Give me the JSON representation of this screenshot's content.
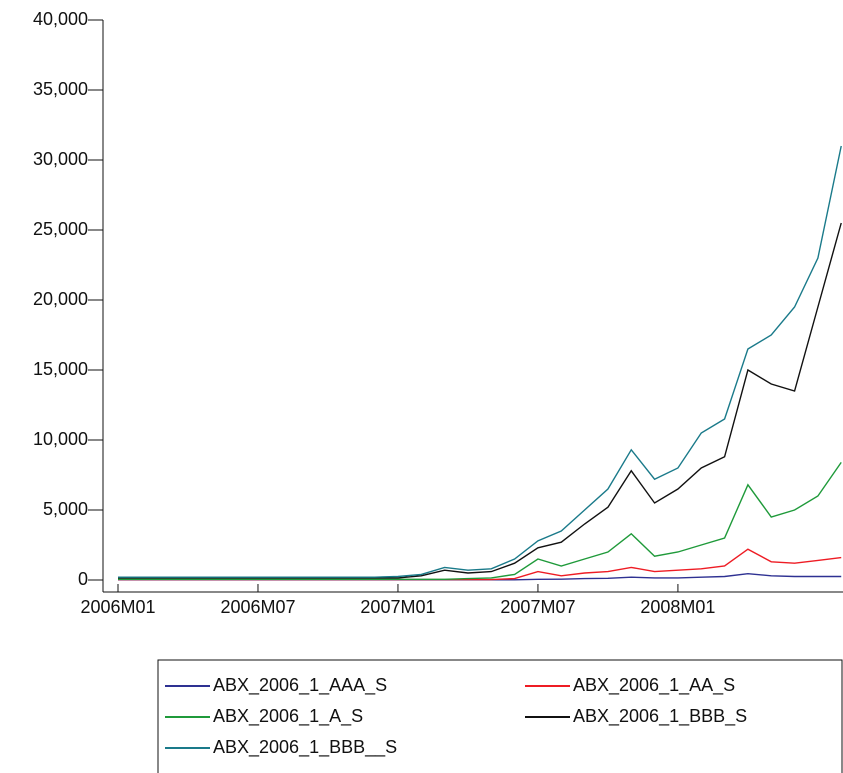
{
  "chart_data": {
    "type": "line",
    "categories": [
      "2006M01",
      null,
      null,
      null,
      null,
      null,
      "2006M07",
      null,
      null,
      null,
      null,
      null,
      "2007M01",
      null,
      null,
      null,
      null,
      null,
      "2007M07",
      null,
      null,
      null,
      null,
      null,
      "2008M01",
      null,
      null,
      null,
      null,
      null,
      null,
      null
    ],
    "series": [
      {
        "name": "ABX_2006_1_AAA_S",
        "color": "#2e3192",
        "values": [
          10,
          10,
          10,
          10,
          10,
          10,
          10,
          10,
          10,
          10,
          10,
          10,
          10,
          10,
          10,
          10,
          10,
          10,
          50,
          60,
          100,
          120,
          200,
          150,
          150,
          200,
          250,
          450,
          300,
          250,
          250,
          250
        ]
      },
      {
        "name": "ABX_2006_1_AA_S",
        "color": "#ee1c24",
        "values": [
          30,
          30,
          30,
          30,
          30,
          30,
          30,
          30,
          30,
          30,
          30,
          30,
          30,
          30,
          30,
          30,
          30,
          100,
          600,
          300,
          500,
          600,
          900,
          600,
          700,
          800,
          1000,
          2200,
          1300,
          1200,
          1400,
          1600
        ]
      },
      {
        "name": "ABX_2006_1_A_S",
        "color": "#1f9a3a",
        "values": [
          50,
          50,
          50,
          50,
          50,
          50,
          50,
          50,
          50,
          50,
          50,
          50,
          50,
          50,
          50,
          100,
          150,
          400,
          1500,
          1000,
          1500,
          2000,
          3300,
          1700,
          2000,
          2500,
          3000,
          6800,
          4500,
          5000,
          6000,
          8400
        ]
      },
      {
        "name": "ABX_2006_1_BBB_S",
        "color": "#111111",
        "values": [
          150,
          150,
          150,
          150,
          150,
          150,
          150,
          150,
          150,
          150,
          150,
          150,
          150,
          300,
          700,
          500,
          600,
          1200,
          2300,
          2700,
          4000,
          5200,
          7800,
          5500,
          6500,
          8000,
          8800,
          15000,
          14000,
          13500,
          19500,
          25500
        ]
      },
      {
        "name": "ABX_2006_1_BBB__S",
        "color": "#1a7a8a",
        "values": [
          200,
          200,
          200,
          200,
          200,
          200,
          200,
          200,
          200,
          200,
          200,
          200,
          250,
          400,
          900,
          700,
          800,
          1500,
          2800,
          3500,
          5000,
          6500,
          9300,
          7200,
          8000,
          10500,
          11500,
          16500,
          17500,
          19500,
          23000,
          31000
        ]
      }
    ],
    "ylim": [
      0,
      40000
    ],
    "yticks": [
      0,
      {
        "value": 5000,
        "label": "5,000"
      },
      {
        "value": 10000,
        "label": "10,000"
      },
      {
        "value": 15000,
        "label": "15,000"
      },
      {
        "value": 20000,
        "label": "20,000"
      },
      {
        "value": 25000,
        "label": "25,000"
      },
      {
        "value": 30000,
        "label": "30,000"
      },
      {
        "value": 35000,
        "label": "35,000"
      },
      {
        "value": 40000,
        "label": "40,000"
      }
    ]
  }
}
